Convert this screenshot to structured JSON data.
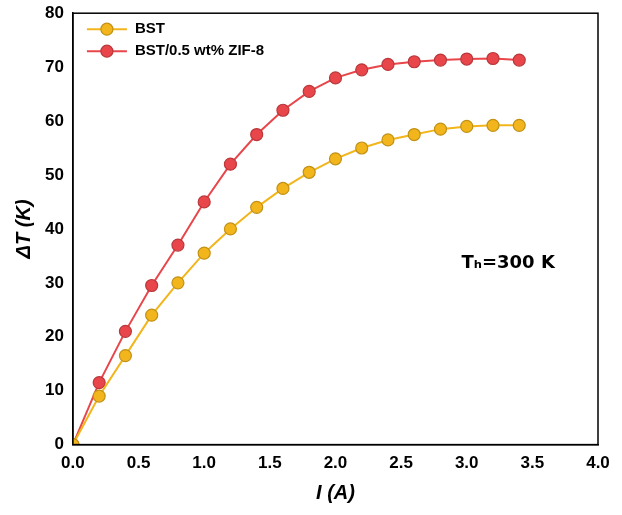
{
  "chart_data": {
    "type": "line",
    "x_label": "I (A)",
    "y_label": "ΔT (K)",
    "annotation": "Tₕ=300 K",
    "x": [
      0.0,
      0.2,
      0.4,
      0.6,
      0.8,
      1.0,
      1.2,
      1.4,
      1.6,
      1.8,
      2.0,
      2.2,
      2.4,
      2.6,
      2.8,
      3.0,
      3.2,
      3.4
    ],
    "series": [
      {
        "name": "BST",
        "color": "#f2b51c",
        "marker": "circle",
        "line_style": "solid",
        "values": [
          0,
          9,
          16.5,
          24,
          30,
          35.5,
          40,
          44,
          47.5,
          50.5,
          53,
          55,
          56.5,
          57.5,
          58.5,
          59,
          59.2,
          59.2
        ]
      },
      {
        "name": "BST/0.5 wt% ZIF-8",
        "color": "#e8464a",
        "marker": "circle",
        "line_style": "solid",
        "values": [
          0,
          11.5,
          21,
          29.5,
          37,
          45,
          52,
          57.5,
          62,
          65.5,
          68,
          69.5,
          70.5,
          71,
          71.3,
          71.5,
          71.6,
          71.3
        ]
      }
    ],
    "xlim": [
      0,
      4
    ],
    "xticks": [
      {
        "value": 0,
        "label": "0.0"
      },
      0.5,
      {
        "value": 1,
        "label": "1.0"
      },
      1.5,
      {
        "value": 2,
        "label": "2.0"
      },
      2.5,
      {
        "value": 3,
        "label": "3.0"
      },
      3.5,
      {
        "value": 4,
        "label": "4.0"
      }
    ],
    "ylim": [
      0,
      80
    ],
    "yticks": [
      0,
      10,
      20,
      30,
      40,
      50,
      60,
      70,
      80
    ],
    "grid": false,
    "legend": "upper left"
  }
}
